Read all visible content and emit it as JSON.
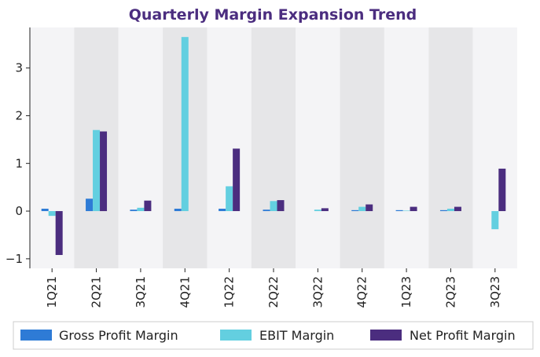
{
  "chart_data": {
    "type": "bar",
    "title": "Quarterly Margin Expansion Trend",
    "xlabel": "",
    "ylabel": "",
    "categories": [
      "1Q21",
      "2Q21",
      "3Q21",
      "4Q21",
      "1Q22",
      "2Q22",
      "3Q22",
      "4Q22",
      "1Q23",
      "2Q23",
      "3Q23"
    ],
    "series": [
      {
        "name": "Gross Profit Margin",
        "color": "#2e7bd6",
        "values": [
          0.05,
          0.26,
          0.03,
          0.05,
          0.05,
          0.03,
          0.0,
          0.02,
          0.02,
          0.02,
          0.0
        ]
      },
      {
        "name": "EBIT Margin",
        "color": "#63cfe0",
        "values": [
          -0.1,
          1.7,
          0.07,
          3.65,
          0.52,
          0.21,
          0.03,
          0.09,
          0.01,
          0.05,
          -0.38
        ]
      },
      {
        "name": "Net Profit Margin",
        "color": "#4b2d7f",
        "values": [
          -0.92,
          1.67,
          0.22,
          0.0,
          1.31,
          0.23,
          0.06,
          0.14,
          0.09,
          0.09,
          0.89
        ]
      }
    ],
    "ylim": [
      -1.2,
      3.85
    ],
    "yticks": [
      -1,
      0,
      1,
      2,
      3
    ],
    "grid": false,
    "legend_position": "bottom",
    "band_colors": [
      "#f4f4f6",
      "#e6e6e8"
    ]
  }
}
